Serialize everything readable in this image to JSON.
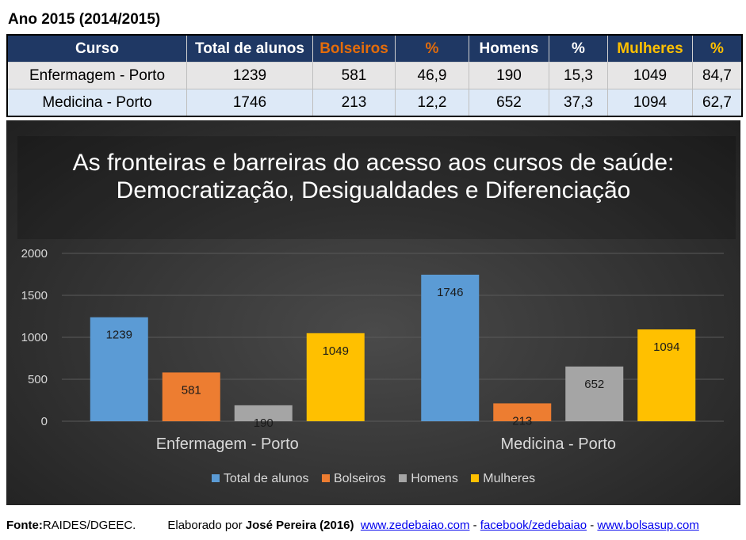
{
  "header": {
    "year_title": "Ano 2015 (2014/2015)"
  },
  "table": {
    "columns": [
      "Curso",
      "Total de alunos",
      "Bolseiros",
      "%",
      "Homens",
      "%",
      "Mulheres",
      "%"
    ],
    "rows": [
      [
        "Enfermagem - Porto",
        "1239",
        "581",
        "46,9",
        "190",
        "15,3",
        "1049",
        "84,7"
      ],
      [
        "Medicina - Porto",
        "1746",
        "213",
        "12,2",
        "652",
        "37,3",
        "1094",
        "62,7"
      ]
    ]
  },
  "chart_data": {
    "type": "bar",
    "title": "As fronteiras e barreiras do acesso aos cursos de saúde:",
    "subtitle": "Democratização, Desigualdades e Diferenciação",
    "categories": [
      "Enfermagem - Porto",
      "Medicina - Porto"
    ],
    "series": [
      {
        "name": "Total de alunos",
        "values": [
          1239,
          1746
        ],
        "color": "#5b9bd5"
      },
      {
        "name": "Bolseiros",
        "values": [
          581,
          213
        ],
        "color": "#ed7d31"
      },
      {
        "name": "Homens",
        "values": [
          190,
          652
        ],
        "color": "#a5a5a5"
      },
      {
        "name": "Mulheres",
        "values": [
          1049,
          1094
        ],
        "color": "#ffc000"
      }
    ],
    "y_ticks": [
      "0",
      "500",
      "1000",
      "1500",
      "2000"
    ],
    "ylim": [
      0,
      2000
    ],
    "grid": true,
    "legend_position": "bottom"
  },
  "footer": {
    "source_label": "Fonte:",
    "source_value": "RAIDES/DGEEC.",
    "made_by_prefix": "Elaborado por ",
    "author": "José Pereira (2016)",
    "link1": "www.zedebaiao.com",
    "sep1": " - ",
    "link2": "facebook/zedebaiao",
    "sep2": " - ",
    "link3": "www.bolsasup.com"
  }
}
